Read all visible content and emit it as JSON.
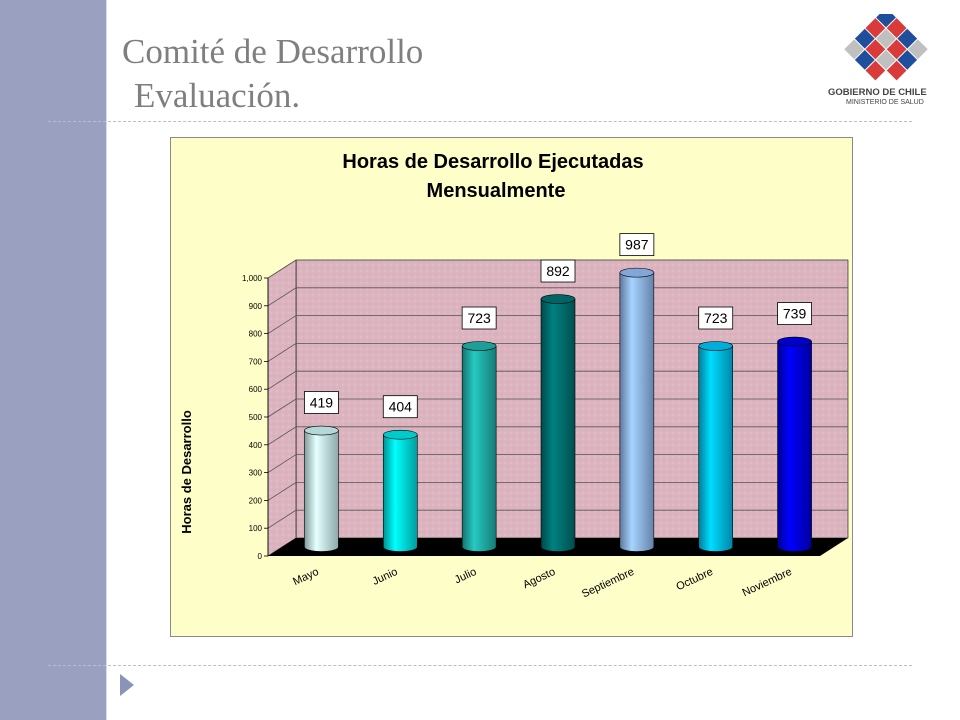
{
  "slide": {
    "title_line1": "Comité de Desarrollo",
    "title_line2": "Evaluación."
  },
  "logo": {
    "line1": "GOBIERNO DE CHILE",
    "line2": "MINISTERIO DE SALUD"
  },
  "colors": {
    "sidebar": "#9aa0bf",
    "chart_background": "#fefec8",
    "plot_wall": "#dcb4c0",
    "floor": "#000000"
  },
  "chart_data": {
    "type": "bar",
    "title": [
      "Horas de Desarrollo Ejecutadas",
      "Mensualmente"
    ],
    "xlabel": "",
    "ylabel": "Horas de Desarrollo",
    "ylim": [
      0,
      1000
    ],
    "yticks": [
      "0",
      "100",
      "200",
      "300",
      "400",
      "500",
      "600",
      "700",
      "800",
      "900",
      "1,000"
    ],
    "categories": [
      "Mayo",
      "Junio",
      "Julio",
      "Agosto",
      "Septiembre",
      "Octubre",
      "Noviembre"
    ],
    "values": [
      419,
      404,
      723,
      892,
      987,
      723,
      739
    ],
    "bar_colors": [
      "#c8f0f0",
      "#00e0e0",
      "#20b0a8",
      "#007070",
      "#90b8f0",
      "#00c0f0",
      "#0000e0"
    ],
    "data_labels": [
      "419",
      "404",
      "723",
      "892",
      "987",
      "723",
      "739"
    ],
    "grid": true,
    "legend": "none",
    "style": "3d-cylinder"
  }
}
